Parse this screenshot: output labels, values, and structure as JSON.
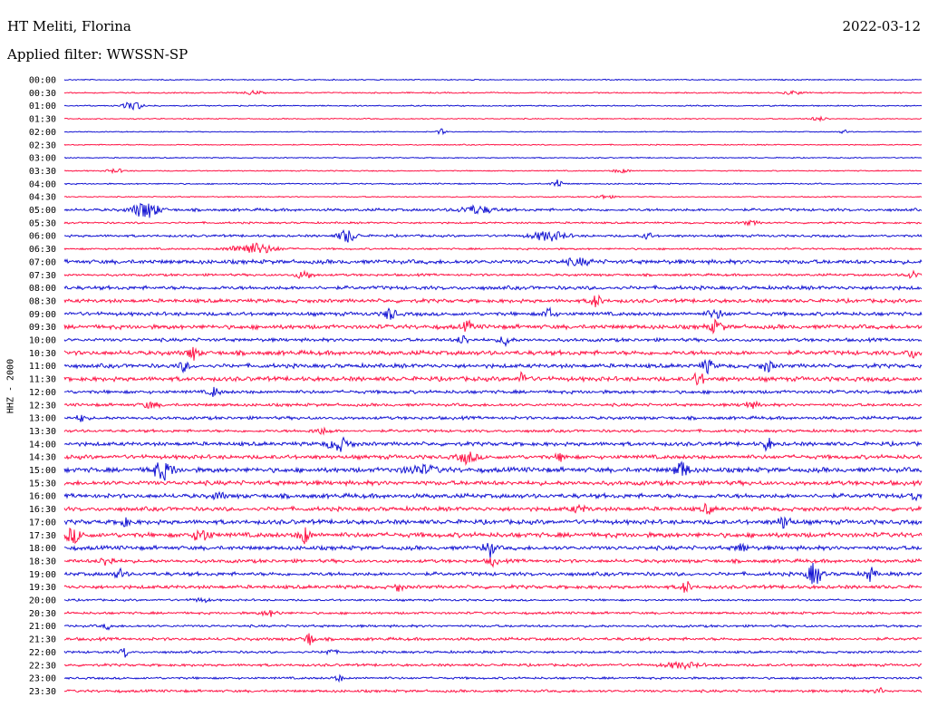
{
  "header": {
    "station": "HT Meliti, Florina",
    "date": "2022-03-12",
    "filter": "Applied filter: WWSSN-SP"
  },
  "chart_data": {
    "type": "line",
    "title": "HT Meliti, Florina",
    "subtitle": "Applied filter: WWSSN-SP",
    "ylabel": "HHZ - 2000",
    "xlabel": "",
    "colors": {
      "even": "#1414d2",
      "odd": "#ff1446"
    },
    "rows": [
      {
        "label": "00:00",
        "noise": 0.6,
        "events": []
      },
      {
        "label": "00:30",
        "noise": 0.7,
        "events": [
          {
            "x": 0.22,
            "a": 2,
            "w": 0.01
          },
          {
            "x": 0.85,
            "a": 2,
            "w": 0.01
          }
        ]
      },
      {
        "label": "01:00",
        "noise": 0.7,
        "events": [
          {
            "x": 0.08,
            "a": 5,
            "w": 0.01
          }
        ]
      },
      {
        "label": "01:30",
        "noise": 0.6,
        "events": [
          {
            "x": 0.88,
            "a": 2,
            "w": 0.01
          }
        ]
      },
      {
        "label": "02:00",
        "noise": 0.5,
        "events": [
          {
            "x": 0.44,
            "a": 3,
            "w": 0.005
          },
          {
            "x": 0.91,
            "a": 2,
            "w": 0.005
          }
        ]
      },
      {
        "label": "02:30",
        "noise": 0.6,
        "events": []
      },
      {
        "label": "03:00",
        "noise": 0.6,
        "events": []
      },
      {
        "label": "03:30",
        "noise": 0.6,
        "events": [
          {
            "x": 0.06,
            "a": 2,
            "w": 0.01
          },
          {
            "x": 0.65,
            "a": 2,
            "w": 0.01
          }
        ]
      },
      {
        "label": "04:00",
        "noise": 0.7,
        "events": [
          {
            "x": 0.575,
            "a": 5,
            "w": 0.006
          }
        ]
      },
      {
        "label": "04:30",
        "noise": 0.6,
        "events": [
          {
            "x": 0.63,
            "a": 2,
            "w": 0.01
          }
        ]
      },
      {
        "label": "05:00",
        "noise": 1.5,
        "events": [
          {
            "x": 0.095,
            "a": 9,
            "w": 0.015
          },
          {
            "x": 0.48,
            "a": 4,
            "w": 0.02
          }
        ]
      },
      {
        "label": "05:30",
        "noise": 1.0,
        "events": [
          {
            "x": 0.8,
            "a": 2,
            "w": 0.01
          }
        ]
      },
      {
        "label": "06:00",
        "noise": 1.3,
        "events": [
          {
            "x": 0.33,
            "a": 7,
            "w": 0.01
          },
          {
            "x": 0.565,
            "a": 5,
            "w": 0.02
          },
          {
            "x": 0.68,
            "a": 4,
            "w": 0.005
          }
        ]
      },
      {
        "label": "06:30",
        "noise": 1.0,
        "events": [
          {
            "x": 0.22,
            "a": 6,
            "w": 0.025
          }
        ]
      },
      {
        "label": "07:00",
        "noise": 2.2,
        "events": [
          {
            "x": 0.6,
            "a": 3,
            "w": 0.015
          }
        ]
      },
      {
        "label": "07:30",
        "noise": 1.3,
        "events": [
          {
            "x": 0.28,
            "a": 4,
            "w": 0.01
          },
          {
            "x": 0.99,
            "a": 4,
            "w": 0.008
          }
        ]
      },
      {
        "label": "08:00",
        "noise": 2.0,
        "events": []
      },
      {
        "label": "08:30",
        "noise": 2.0,
        "events": [
          {
            "x": 0.62,
            "a": 7,
            "w": 0.006
          }
        ]
      },
      {
        "label": "09:00",
        "noise": 2.0,
        "events": [
          {
            "x": 0.38,
            "a": 7,
            "w": 0.006
          },
          {
            "x": 0.565,
            "a": 6,
            "w": 0.006
          },
          {
            "x": 0.76,
            "a": 4,
            "w": 0.01
          }
        ]
      },
      {
        "label": "09:30",
        "noise": 2.3,
        "events": [
          {
            "x": 0.47,
            "a": 5,
            "w": 0.006
          },
          {
            "x": 0.76,
            "a": 6,
            "w": 0.008
          }
        ]
      },
      {
        "label": "10:00",
        "noise": 1.8,
        "events": [
          {
            "x": 0.465,
            "a": 5,
            "w": 0.006
          },
          {
            "x": 0.515,
            "a": 6,
            "w": 0.006
          }
        ]
      },
      {
        "label": "10:30",
        "noise": 2.4,
        "events": [
          {
            "x": 0.15,
            "a": 7,
            "w": 0.006
          },
          {
            "x": 0.99,
            "a": 4,
            "w": 0.008
          }
        ]
      },
      {
        "label": "11:00",
        "noise": 2.2,
        "events": [
          {
            "x": 0.14,
            "a": 5,
            "w": 0.006
          },
          {
            "x": 0.75,
            "a": 7,
            "w": 0.006
          },
          {
            "x": 0.82,
            "a": 6,
            "w": 0.006
          }
        ]
      },
      {
        "label": "11:30",
        "noise": 2.4,
        "events": [
          {
            "x": 0.535,
            "a": 7,
            "w": 0.005
          },
          {
            "x": 0.74,
            "a": 9,
            "w": 0.005
          }
        ]
      },
      {
        "label": "12:00",
        "noise": 1.8,
        "events": [
          {
            "x": 0.175,
            "a": 5,
            "w": 0.006
          }
        ]
      },
      {
        "label": "12:30",
        "noise": 1.6,
        "events": [
          {
            "x": 0.1,
            "a": 3,
            "w": 0.01
          },
          {
            "x": 0.8,
            "a": 3,
            "w": 0.01
          }
        ]
      },
      {
        "label": "13:00",
        "noise": 1.7,
        "events": [
          {
            "x": 0.02,
            "a": 4,
            "w": 0.005
          }
        ]
      },
      {
        "label": "13:30",
        "noise": 1.5,
        "events": [
          {
            "x": 0.3,
            "a": 3,
            "w": 0.01
          }
        ]
      },
      {
        "label": "14:00",
        "noise": 2.1,
        "events": [
          {
            "x": 0.32,
            "a": 7,
            "w": 0.012
          },
          {
            "x": 0.82,
            "a": 7,
            "w": 0.005
          }
        ]
      },
      {
        "label": "14:30",
        "noise": 2.2,
        "events": [
          {
            "x": 0.47,
            "a": 6,
            "w": 0.01
          },
          {
            "x": 0.58,
            "a": 4,
            "w": 0.006
          }
        ]
      },
      {
        "label": "15:00",
        "noise": 2.6,
        "events": [
          {
            "x": 0.115,
            "a": 9,
            "w": 0.012
          },
          {
            "x": 0.415,
            "a": 4,
            "w": 0.02
          },
          {
            "x": 0.72,
            "a": 9,
            "w": 0.008
          }
        ]
      },
      {
        "label": "15:30",
        "noise": 2.4,
        "events": []
      },
      {
        "label": "16:00",
        "noise": 2.4,
        "events": [
          {
            "x": 0.18,
            "a": 4,
            "w": 0.006
          },
          {
            "x": 0.99,
            "a": 4,
            "w": 0.006
          }
        ]
      },
      {
        "label": "16:30",
        "noise": 2.2,
        "events": [
          {
            "x": 0.6,
            "a": 3,
            "w": 0.01
          },
          {
            "x": 0.75,
            "a": 5,
            "w": 0.006
          }
        ]
      },
      {
        "label": "17:00",
        "noise": 2.4,
        "events": [
          {
            "x": 0.07,
            "a": 4,
            "w": 0.006
          },
          {
            "x": 0.84,
            "a": 6,
            "w": 0.008
          }
        ]
      },
      {
        "label": "17:30",
        "noise": 2.6,
        "events": [
          {
            "x": 0.01,
            "a": 7,
            "w": 0.01
          },
          {
            "x": 0.16,
            "a": 6,
            "w": 0.01
          },
          {
            "x": 0.28,
            "a": 9,
            "w": 0.006
          }
        ]
      },
      {
        "label": "18:00",
        "noise": 2.2,
        "events": [
          {
            "x": 0.495,
            "a": 10,
            "w": 0.006
          },
          {
            "x": 0.79,
            "a": 5,
            "w": 0.006
          }
        ]
      },
      {
        "label": "18:30",
        "noise": 1.9,
        "events": [
          {
            "x": 0.05,
            "a": 5,
            "w": 0.008
          },
          {
            "x": 0.5,
            "a": 5,
            "w": 0.005
          }
        ]
      },
      {
        "label": "19:00",
        "noise": 2.0,
        "events": [
          {
            "x": 0.065,
            "a": 5,
            "w": 0.006
          },
          {
            "x": 0.875,
            "a": 12,
            "w": 0.008
          },
          {
            "x": 0.94,
            "a": 8,
            "w": 0.005
          }
        ]
      },
      {
        "label": "19:30",
        "noise": 1.9,
        "events": [
          {
            "x": 0.39,
            "a": 4,
            "w": 0.005
          },
          {
            "x": 0.725,
            "a": 7,
            "w": 0.005
          }
        ]
      },
      {
        "label": "20:00",
        "noise": 1.1,
        "events": [
          {
            "x": 0.16,
            "a": 2,
            "w": 0.01
          }
        ]
      },
      {
        "label": "20:30",
        "noise": 1.3,
        "events": [
          {
            "x": 0.24,
            "a": 3,
            "w": 0.01
          }
        ]
      },
      {
        "label": "21:00",
        "noise": 1.3,
        "events": [
          {
            "x": 0.05,
            "a": 3,
            "w": 0.005
          }
        ]
      },
      {
        "label": "21:30",
        "noise": 1.6,
        "events": [
          {
            "x": 0.285,
            "a": 7,
            "w": 0.006
          }
        ]
      },
      {
        "label": "22:00",
        "noise": 1.3,
        "events": [
          {
            "x": 0.07,
            "a": 6,
            "w": 0.004
          },
          {
            "x": 0.31,
            "a": 3,
            "w": 0.006
          }
        ]
      },
      {
        "label": "22:30",
        "noise": 1.4,
        "events": [
          {
            "x": 0.72,
            "a": 3,
            "w": 0.02
          }
        ]
      },
      {
        "label": "23:00",
        "noise": 1.2,
        "events": [
          {
            "x": 0.32,
            "a": 3,
            "w": 0.006
          }
        ]
      },
      {
        "label": "23:30",
        "noise": 1.4,
        "events": [
          {
            "x": 0.95,
            "a": 4,
            "w": 0.004
          }
        ]
      }
    ]
  }
}
